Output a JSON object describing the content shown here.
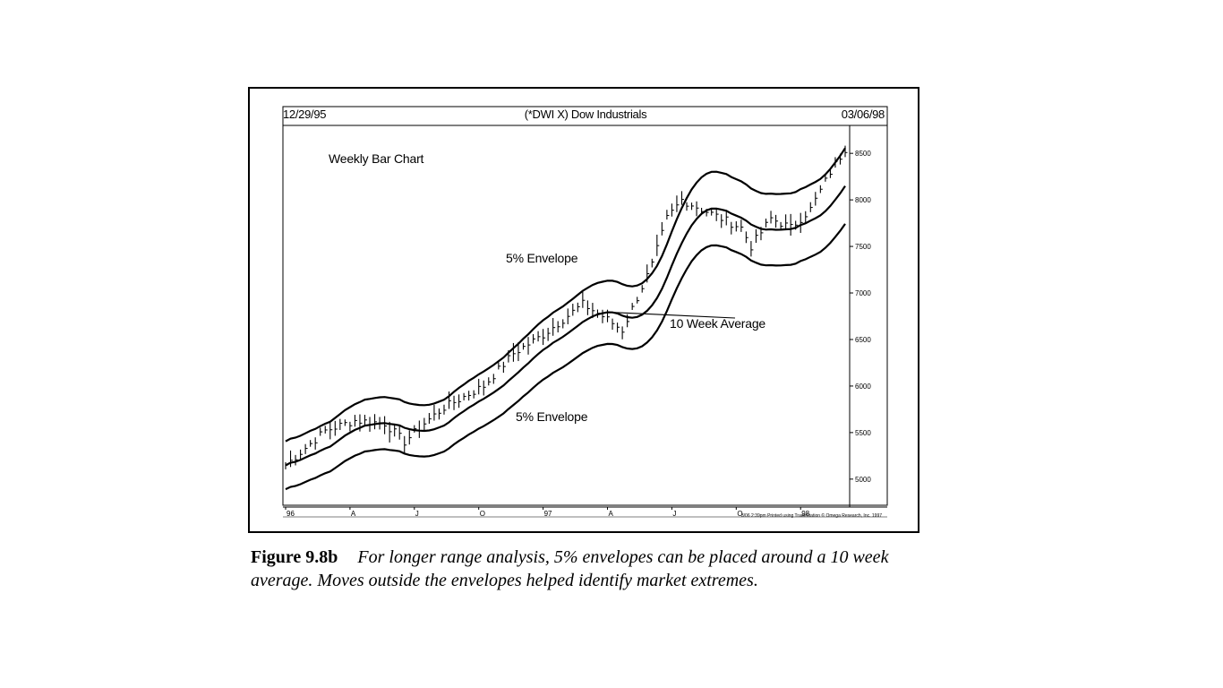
{
  "header": {
    "start_date": "12/29/95",
    "title": "(*DWI X) Dow Industrials",
    "end_date": "03/06/98"
  },
  "annotations": {
    "chart_label": "Weekly Bar Chart",
    "upper_envelope": "5% Envelope",
    "lower_envelope": "5% Envelope",
    "moving_average": "10 Week Average"
  },
  "footer_note": "3/06 2:39pm Printed using TradeStation © Omega Research, Inc. 1997",
  "caption": {
    "label": "Figure 9.8b",
    "text": "For longer range analysis, 5% envelopes can be placed around a 10 week average. Moves outside the envelopes helped identify market extremes."
  },
  "chart_data": {
    "type": "bar",
    "title": "(*DWI X) Dow Industrials",
    "subtitle": "Weekly Bar Chart",
    "xlabel": "",
    "ylabel": "",
    "ylim": [
      4700,
      8800
    ],
    "y_ticks": [
      5000,
      5500,
      6000,
      6500,
      7000,
      7500,
      8000,
      8500
    ],
    "y_tick_labels": [
      "5000",
      "5500",
      "6000",
      "6500",
      "7000",
      "7500",
      "8000",
      "8500"
    ],
    "x_tick_labels": [
      "96",
      "A",
      "J",
      "O",
      "97",
      "A",
      "J",
      "O",
      "98"
    ],
    "x_tick_weeks": [
      0,
      13,
      26,
      39,
      52,
      65,
      78,
      91,
      104
    ],
    "grid": false,
    "price_path": [
      [
        0,
        5150
      ],
      [
        8,
        5520
      ],
      [
        14,
        5630
      ],
      [
        20,
        5600
      ],
      [
        24,
        5400
      ],
      [
        28,
        5600
      ],
      [
        32,
        5770
      ],
      [
        40,
        6000
      ],
      [
        46,
        6350
      ],
      [
        52,
        6550
      ],
      [
        60,
        6880
      ],
      [
        64,
        6750
      ],
      [
        68,
        6600
      ],
      [
        74,
        7300
      ],
      [
        77,
        7800
      ],
      [
        80,
        8000
      ],
      [
        84,
        7900
      ],
      [
        88,
        7800
      ],
      [
        92,
        7700
      ],
      [
        94,
        7500
      ],
      [
        98,
        7800
      ],
      [
        102,
        7700
      ],
      [
        106,
        7900
      ],
      [
        110,
        8300
      ],
      [
        113,
        8550
      ]
    ],
    "notes": "Weekly OHLC bars from 12/29/95 to 03/06/98 with a 10 week moving average and upper/lower 5% envelopes."
  }
}
